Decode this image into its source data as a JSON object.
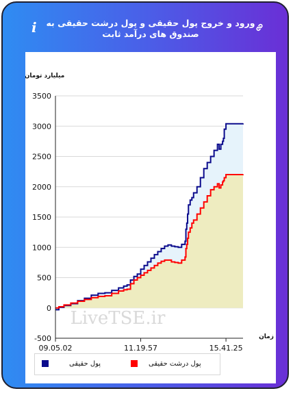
{
  "header": {
    "title": "ورود و خروج پول حقیقی و پول درشت حقیقی به صندوق های درآمد ثابت",
    "info_icon": "info-icon",
    "link_icon": "link-icon"
  },
  "watermark": "LiveTSE.ir",
  "chart_data": {
    "type": "area",
    "ylabel": "میلیارد تومان",
    "xlabel": "زمان",
    "ylim": [
      -500,
      3500
    ],
    "yticks": [
      -500,
      0,
      500,
      1000,
      1500,
      2000,
      2500,
      3000,
      3500
    ],
    "xticks": [
      "09.05.02",
      "11.19.57",
      "15.41.25"
    ],
    "grid": "horizontal",
    "legend_position": "bottom",
    "series": [
      {
        "name": "پول حقیقی",
        "color": "#0a0a8c",
        "fill": "#e6f3fb",
        "points": [
          [
            0,
            -30
          ],
          [
            0.02,
            10
          ],
          [
            0.05,
            40
          ],
          [
            0.09,
            70
          ],
          [
            0.13,
            120
          ],
          [
            0.17,
            160
          ],
          [
            0.21,
            210
          ],
          [
            0.25,
            240
          ],
          [
            0.29,
            250
          ],
          [
            0.33,
            290
          ],
          [
            0.37,
            330
          ],
          [
            0.4,
            360
          ],
          [
            0.42,
            380
          ],
          [
            0.44,
            460
          ],
          [
            0.46,
            520
          ],
          [
            0.48,
            560
          ],
          [
            0.5,
            640
          ],
          [
            0.52,
            700
          ],
          [
            0.54,
            760
          ],
          [
            0.56,
            820
          ],
          [
            0.58,
            880
          ],
          [
            0.6,
            930
          ],
          [
            0.62,
            980
          ],
          [
            0.64,
            1020
          ],
          [
            0.66,
            1040
          ],
          [
            0.68,
            1020
          ],
          [
            0.7,
            1010
          ],
          [
            0.72,
            1000
          ],
          [
            0.74,
            1050
          ],
          [
            0.76,
            1100
          ],
          [
            0.765,
            1300
          ],
          [
            0.77,
            1400
          ],
          [
            0.775,
            1550
          ],
          [
            0.78,
            1700
          ],
          [
            0.79,
            1780
          ],
          [
            0.8,
            1820
          ],
          [
            0.81,
            1900
          ],
          [
            0.83,
            2000
          ],
          [
            0.85,
            2150
          ],
          [
            0.87,
            2300
          ],
          [
            0.89,
            2400
          ],
          [
            0.91,
            2500
          ],
          [
            0.93,
            2600
          ],
          [
            0.95,
            2700
          ],
          [
            0.96,
            2620
          ],
          [
            0.97,
            2700
          ],
          [
            0.98,
            2750
          ],
          [
            0.985,
            2800
          ],
          [
            0.99,
            2950
          ],
          [
            1.0,
            3000
          ],
          [
            1.0,
            3040
          ],
          [
            1.1,
            3045
          ]
        ]
      },
      {
        "name": "پول درشت حقیقی",
        "color": "#ff0000",
        "fill": "#eeecc0",
        "points": [
          [
            0,
            0
          ],
          [
            0.02,
            20
          ],
          [
            0.05,
            50
          ],
          [
            0.09,
            80
          ],
          [
            0.13,
            110
          ],
          [
            0.17,
            140
          ],
          [
            0.21,
            170
          ],
          [
            0.25,
            190
          ],
          [
            0.29,
            200
          ],
          [
            0.33,
            240
          ],
          [
            0.37,
            280
          ],
          [
            0.4,
            300
          ],
          [
            0.42,
            310
          ],
          [
            0.44,
            400
          ],
          [
            0.46,
            460
          ],
          [
            0.48,
            500
          ],
          [
            0.5,
            540
          ],
          [
            0.52,
            580
          ],
          [
            0.54,
            620
          ],
          [
            0.56,
            660
          ],
          [
            0.58,
            700
          ],
          [
            0.6,
            740
          ],
          [
            0.62,
            770
          ],
          [
            0.64,
            790
          ],
          [
            0.66,
            790
          ],
          [
            0.68,
            760
          ],
          [
            0.7,
            750
          ],
          [
            0.72,
            740
          ],
          [
            0.74,
            790
          ],
          [
            0.76,
            840
          ],
          [
            0.765,
            980
          ],
          [
            0.77,
            1050
          ],
          [
            0.775,
            1150
          ],
          [
            0.78,
            1250
          ],
          [
            0.79,
            1320
          ],
          [
            0.8,
            1400
          ],
          [
            0.81,
            1450
          ],
          [
            0.83,
            1550
          ],
          [
            0.85,
            1650
          ],
          [
            0.87,
            1750
          ],
          [
            0.89,
            1850
          ],
          [
            0.91,
            1950
          ],
          [
            0.93,
            2000
          ],
          [
            0.95,
            2050
          ],
          [
            0.96,
            1980
          ],
          [
            0.97,
            2030
          ],
          [
            0.98,
            2080
          ],
          [
            0.985,
            2100
          ],
          [
            0.99,
            2150
          ],
          [
            1.0,
            2180
          ],
          [
            1.0,
            2200
          ],
          [
            1.1,
            2205
          ]
        ]
      }
    ]
  }
}
